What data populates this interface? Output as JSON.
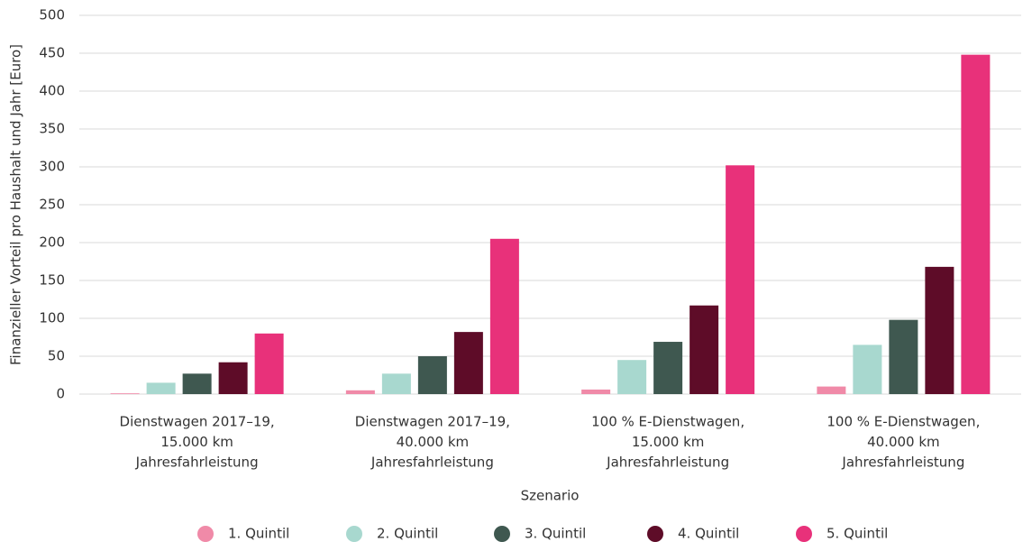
{
  "chart_data": {
    "type": "bar",
    "y_label": "Finanzieller Vorteil pro Haushalt und Jahr [Euro]",
    "x_label": "Szenario",
    "categories": [
      [
        "Dienstwagen 2017–19,",
        "15.000 km",
        "Jahresfahrleistung"
      ],
      [
        "Dienstwagen 2017–19,",
        "40.000 km",
        "Jahresfahrleistung"
      ],
      [
        "100 % E-Dienstwagen,",
        "15.000 km",
        "Jahresfahrleistung"
      ],
      [
        "100 % E-Dienstwagen,",
        "40.000 km",
        "Jahresfahrleistung"
      ]
    ],
    "series": [
      {
        "name": "1. Quintil",
        "color": "#f08aa8",
        "values": [
          1,
          5,
          6,
          10
        ]
      },
      {
        "name": "2. Quintil",
        "color": "#a8d8cf",
        "values": [
          15,
          27,
          45,
          65
        ]
      },
      {
        "name": "3. Quintil",
        "color": "#3f5850",
        "values": [
          27,
          50,
          69,
          98
        ]
      },
      {
        "name": "4. Quintil",
        "color": "#5e0c28",
        "values": [
          42,
          82,
          117,
          168
        ]
      },
      {
        "name": "5. Quintil",
        "color": "#e8317a",
        "values": [
          80,
          205,
          302,
          448
        ]
      }
    ],
    "ylim": [
      0,
      500
    ],
    "yticks": [
      0,
      50,
      100,
      150,
      200,
      250,
      300,
      350,
      400,
      450,
      500
    ],
    "grid": true,
    "legend": "bottom"
  }
}
